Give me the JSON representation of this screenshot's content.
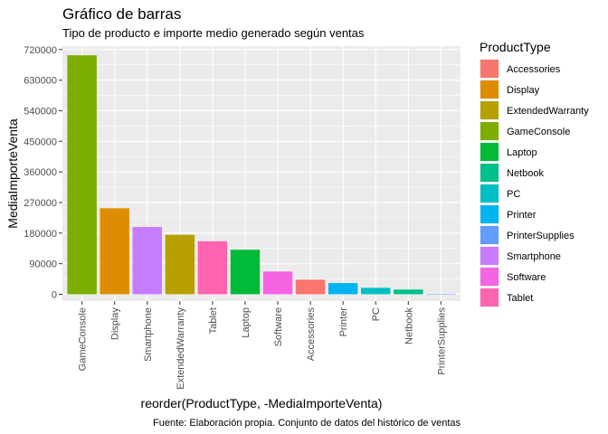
{
  "chart_data": {
    "type": "bar",
    "title": "Gráfico de barras",
    "subtitle": "Tipo de producto e importe medio generado según ventas",
    "xlabel": "reorder(ProductType, -MediaImporteVenta)",
    "ylabel": "MediaImporteVenta",
    "caption": "Fuente: Elaboración propia. Conjunto de datos del histórico de ventas",
    "ylim": [
      -20000,
      730000
    ],
    "yticks": [
      0,
      90000,
      180000,
      270000,
      360000,
      450000,
      540000,
      630000,
      720000
    ],
    "ytick_labels": [
      "0",
      "90000",
      "180000",
      "270000",
      "360000",
      "450000",
      "540000",
      "630000",
      "720000"
    ],
    "categories": [
      "GameConsole",
      "Display",
      "Smartphone",
      "ExtendedWarranty",
      "Tablet",
      "Laptop",
      "Software",
      "Accessories",
      "Printer",
      "PC",
      "Netbook",
      "PrinterSupplies"
    ],
    "values": [
      703000,
      253000,
      198000,
      175000,
      156000,
      131000,
      67000,
      43000,
      33000,
      19000,
      14000,
      500
    ],
    "grid": true,
    "panel_background": "#ebebeb",
    "legend": {
      "title": "ProductType",
      "placement": "right",
      "entries": [
        {
          "label": "Accessories",
          "color": "#F8766D"
        },
        {
          "label": "Display",
          "color": "#DE8C00"
        },
        {
          "label": "ExtendedWarranty",
          "color": "#B79F00"
        },
        {
          "label": "GameConsole",
          "color": "#7CAE00"
        },
        {
          "label": "Laptop",
          "color": "#00BA38"
        },
        {
          "label": "Netbook",
          "color": "#00C08B"
        },
        {
          "label": "PC",
          "color": "#00BFC4"
        },
        {
          "label": "Printer",
          "color": "#00B4F0"
        },
        {
          "label": "PrinterSupplies",
          "color": "#619CFF"
        },
        {
          "label": "Smartphone",
          "color": "#C77CFF"
        },
        {
          "label": "Software",
          "color": "#F564E3"
        },
        {
          "label": "Tablet",
          "color": "#FF64B0"
        }
      ]
    }
  }
}
